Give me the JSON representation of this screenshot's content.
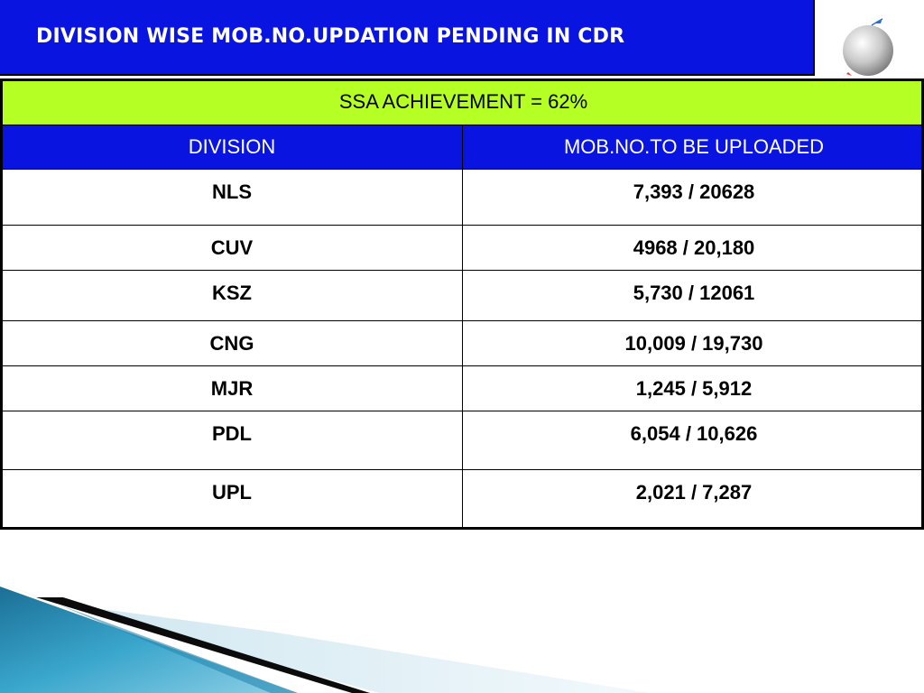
{
  "title": "DIVISION WISE MOB.NO.UPDATION PENDING IN CDR",
  "banner": "SSA ACHIEVEMENT = 62%",
  "table": {
    "headers": [
      "DIVISION",
      "MOB.NO.TO BE UPLOADED"
    ],
    "rows": [
      {
        "division": "NLS",
        "mob": "7,393 / 20628"
      },
      {
        "division": "CUV",
        "mob": "4968 / 20,180"
      },
      {
        "division": "KSZ",
        "mob": "5,730 / 12061"
      },
      {
        "division": "CNG",
        "mob": "10,009 / 19,730"
      },
      {
        "division": "MJR",
        "mob": "1,245 / 5,912"
      },
      {
        "division": "PDL",
        "mob": "6,054 / 10,626"
      },
      {
        "division": "UPL",
        "mob": "2,021 / 7,287"
      }
    ]
  },
  "icons": {
    "logo": "globe-logo-icon",
    "decoration": "corner-swoosh-decoration"
  },
  "colors": {
    "title_bg": "#0a14e0",
    "banner_bg": "#b6ff24",
    "header_bg": "#0a14e0"
  }
}
